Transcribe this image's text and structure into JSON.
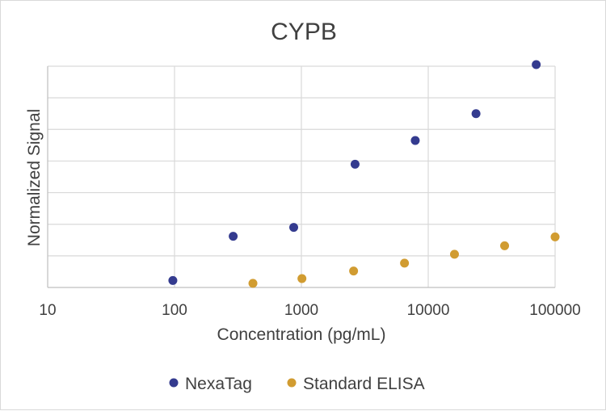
{
  "chart_data": {
    "type": "scatter",
    "title": "CYPB",
    "xlabel": "Concentration (pg/mL)",
    "ylabel": "Normalized Signal",
    "x_scale": "log",
    "xlim": [
      10,
      100000
    ],
    "x_ticks": [
      "10",
      "100",
      "1000",
      "10000",
      "100000"
    ],
    "ylim": [
      0,
      7
    ],
    "y_tick_labels_visible": false,
    "grid": true,
    "legend_position": "bottom",
    "series": [
      {
        "name": "NexaTag",
        "color": "#343b8f",
        "points": [
          {
            "x": 97,
            "y": 0.22
          },
          {
            "x": 290,
            "y": 1.62
          },
          {
            "x": 870,
            "y": 1.9
          },
          {
            "x": 2650,
            "y": 3.9
          },
          {
            "x": 7900,
            "y": 4.65
          },
          {
            "x": 23800,
            "y": 5.5
          },
          {
            "x": 71000,
            "y": 7.05
          }
        ]
      },
      {
        "name": "Standard ELISA",
        "color": "#d19c31",
        "points": [
          {
            "x": 415,
            "y": 0.13
          },
          {
            "x": 1010,
            "y": 0.28
          },
          {
            "x": 2580,
            "y": 0.52
          },
          {
            "x": 6500,
            "y": 0.77
          },
          {
            "x": 16100,
            "y": 1.05
          },
          {
            "x": 40000,
            "y": 1.32
          },
          {
            "x": 100000,
            "y": 1.6
          }
        ]
      }
    ]
  }
}
